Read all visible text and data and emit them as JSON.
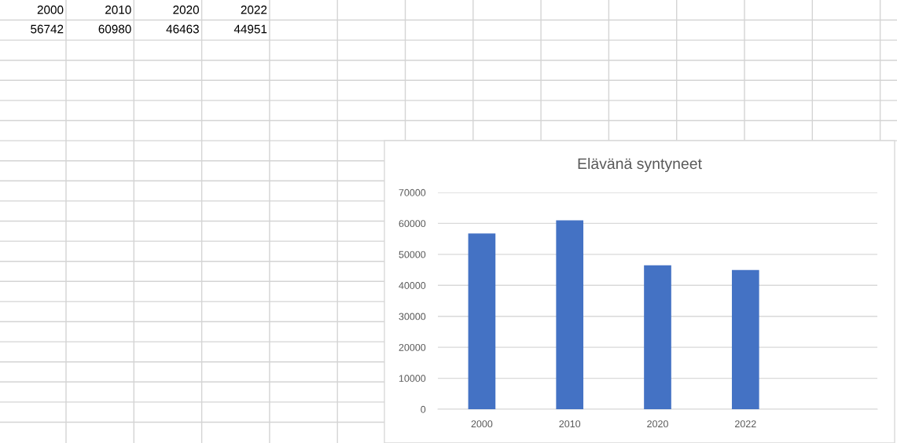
{
  "chart_data": [
    {
      "type": "other",
      "categories": [
        "2000",
        "2010",
        "2020",
        "2022"
      ],
      "values": [
        56742,
        60980,
        46463,
        44951
      ],
      "data_labels": true
    },
    {
      "type": "bar",
      "title": "Elävänä syntyneet",
      "categories": [
        "2000",
        "2010",
        "2020",
        "2022",
        null
      ],
      "values": [
        56742,
        60980,
        46463,
        44951,
        null
      ],
      "color": "#4472c4",
      "ylim": [
        0,
        70000
      ],
      "yticks": [
        0,
        10000,
        20000,
        30000,
        40000,
        50000,
        60000,
        70000
      ],
      "grid": "y"
    }
  ]
}
